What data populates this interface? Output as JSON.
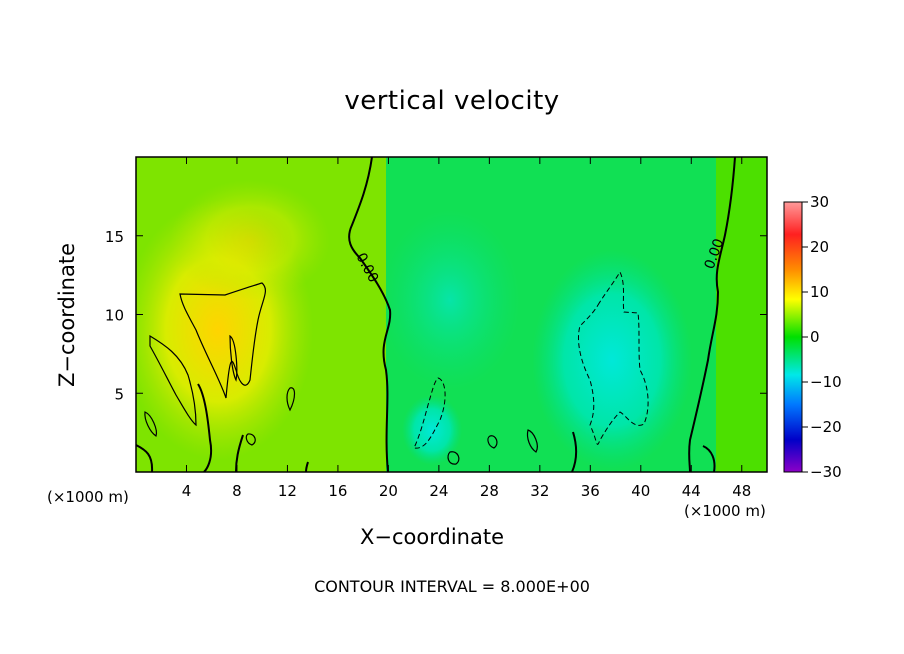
{
  "chart_data": {
    "type": "heatmap",
    "title": "vertical velocity",
    "xlabel": "X−coordinate",
    "ylabel": "Z−coordinate",
    "x_unit": "(×1000 m)",
    "xlim": [
      0,
      50
    ],
    "ylim": [
      0,
      20
    ],
    "x_ticks": [
      4,
      8,
      12,
      16,
      20,
      24,
      28,
      32,
      36,
      40,
      44,
      48
    ],
    "y_ticks": [
      5,
      10,
      15
    ],
    "colorbar": {
      "range": [
        -30,
        30
      ],
      "ticks": [
        30,
        20,
        10,
        0,
        -10,
        -20,
        -30
      ],
      "tick_labels": [
        "30",
        "20",
        "10",
        "0",
        "−10",
        "−20",
        "−30"
      ],
      "colors": [
        "#ff8c8c",
        "#ff0000",
        "#ff8c00",
        "#ffff00",
        "#00e000",
        "#00e0e0",
        "#0078ff",
        "#0000c8",
        "#8c00c8"
      ]
    },
    "contour_interval": "CONTOUR INTERVAL = 8.000E+00",
    "contour_labels": [
      "0.00",
      "0.00"
    ],
    "regions": [
      {
        "x": 8,
        "z": 9,
        "value": 8,
        "note": "updraft"
      },
      {
        "x": 38,
        "z": 8,
        "value": -8,
        "note": "downdraft"
      },
      {
        "x": 24,
        "z": 3,
        "value": -8,
        "note": "downdraft"
      }
    ]
  }
}
